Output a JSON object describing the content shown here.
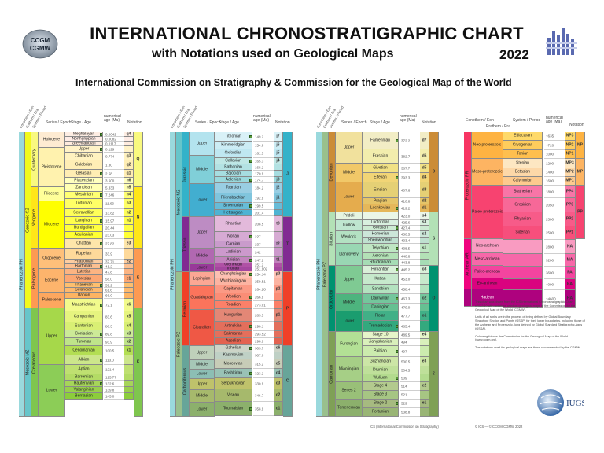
{
  "header": {
    "title": "INTERNATIONAL CHRONOSTRATIGRAPHIC CHART",
    "subtitle": "with Notations used on Geological Maps",
    "year": "2022",
    "organizations": "International Commission on Stratigraphy & Commission for the Geological Map of the World"
  },
  "logos": {
    "left": "ICS CGMW logo",
    "left_text_top": "CCGM",
    "left_text_bottom": "CGMW",
    "right": "ICS logo",
    "bottom": "IUGS logo",
    "bottom_text": "IUGS"
  },
  "column_headers": {
    "eonothem": "Eonothem / Eon",
    "erathem": "Erathem / Era",
    "system": "System / Period",
    "series": "Series / Epoch",
    "stage": "Stage / Age",
    "numerical": "numerical age (Ma)",
    "notation": "Notation"
  },
  "panel1": {
    "eon": "Phanerozoic  PH",
    "eras": [
      {
        "label": "Cenozoic  CZ"
      },
      {
        "label": "Mesozoic  MZ"
      }
    ],
    "systems": [
      {
        "label": "Quaternary"
      },
      {
        "label": "Neogene"
      },
      {
        "label": "Paleogene"
      },
      {
        "label": "Cretaceous"
      }
    ],
    "series": [
      {
        "label": "Holocene"
      },
      {
        "label": "Pleistocene"
      },
      {
        "label": "Pliocene"
      },
      {
        "label": "Miocene"
      },
      {
        "label": "Oligocene"
      },
      {
        "label": "Eocene"
      },
      {
        "label": "Paleocene"
      },
      {
        "label": "Upper"
      },
      {
        "label": "Lower"
      }
    ],
    "stages": [
      {
        "label": "Meghalayan",
        "age": "0.0042",
        "note": "q4"
      },
      {
        "label": "Northgrippian",
        "age": "0.0082",
        "note": ""
      },
      {
        "label": "Greenlandian",
        "age": "0.0117",
        "note": ""
      },
      {
        "label": "Upper",
        "age": "0.129",
        "note": ""
      },
      {
        "label": "Chibanian",
        "age": "0.774",
        "note": "q3"
      },
      {
        "label": "Calabrian",
        "age": "1.80",
        "note": "q2"
      },
      {
        "label": "Gelasian",
        "age": "2.58",
        "note": "q1"
      },
      {
        "label": "Piacenzian",
        "age": "3.600",
        "note": "n6"
      },
      {
        "label": "Zanclean",
        "age": "5.333",
        "note": "n5"
      },
      {
        "label": "Messinian",
        "age": "7.246",
        "note": "n4"
      },
      {
        "label": "Tortonian",
        "age": "11.63",
        "note": "n3"
      },
      {
        "label": "Serravallian",
        "age": "13.82",
        "note": "n2"
      },
      {
        "label": "Langhian",
        "age": "15.97",
        "note": "n1"
      },
      {
        "label": "Burdigalian",
        "age": "20.44",
        "note": ""
      },
      {
        "label": "Aquitanian",
        "age": "23.03",
        "note": ""
      },
      {
        "label": "Chattian",
        "age": "27.82",
        "note": "e3"
      },
      {
        "label": "Rupelian",
        "age": "33.9",
        "note": ""
      },
      {
        "label": "Priabonian",
        "age": "37.71",
        "note": "e2"
      },
      {
        "label": "Bartonian",
        "age": "41.2",
        "note": ""
      },
      {
        "label": "Lutetian",
        "age": "47.8",
        "note": ""
      },
      {
        "label": "Ypresian",
        "age": "56.0",
        "note": "e1"
      },
      {
        "label": "Thanetian",
        "age": "59.2",
        "note": ""
      },
      {
        "label": "Selandian",
        "age": "61.6",
        "note": ""
      },
      {
        "label": "Danian",
        "age": "66.0",
        "note": ""
      },
      {
        "label": "Maastrichtian",
        "age": "72.1",
        "note": "k6"
      },
      {
        "label": "Campanian",
        "age": "83.6",
        "note": "k5"
      },
      {
        "label": "Santonian",
        "age": "86.3",
        "note": "k4"
      },
      {
        "label": "Coniacian",
        "age": "89.8",
        "note": "k3"
      },
      {
        "label": "Turonian",
        "age": "93.9",
        "note": "k2"
      },
      {
        "label": "Cenomanian",
        "age": "100.5",
        "note": "k1"
      },
      {
        "label": "Albian",
        "age": "113.0",
        "note": ""
      },
      {
        "label": "Aptian",
        "age": "121.4",
        "note": ""
      },
      {
        "label": "Barremian",
        "age": "125.77",
        "note": ""
      },
      {
        "label": "Hauterivian",
        "age": "132.6",
        "note": ""
      },
      {
        "label": "Valanginian",
        "age": "139.8",
        "note": ""
      },
      {
        "label": "Berriasian",
        "age": "145.0",
        "note": ""
      }
    ],
    "notations": [
      "Q",
      "N",
      "E",
      "K"
    ]
  },
  "panel2": {
    "eon": "Phanerozoic  PH",
    "eras": [
      {
        "label": "Mesozoic  MZ"
      },
      {
        "label": "Paleozoic  PZ"
      }
    ],
    "systems": [
      {
        "label": "Jurassic"
      },
      {
        "label": "Triassic"
      },
      {
        "label": "Permian"
      },
      {
        "label": "Carboniferous"
      }
    ],
    "series": [
      {
        "label": "Upper"
      },
      {
        "label": "Middle"
      },
      {
        "label": "Lower"
      },
      {
        "label": "Upper"
      },
      {
        "label": "Middle"
      },
      {
        "label": "Lower"
      },
      {
        "label": "Lopingian"
      },
      {
        "label": "Guadalupian"
      },
      {
        "label": "Cisuralian"
      },
      {
        "label": "Upper"
      },
      {
        "label": "Middle"
      },
      {
        "label": "Lower"
      },
      {
        "label": "Upper"
      },
      {
        "label": "Middle"
      },
      {
        "label": "Lower"
      }
    ],
    "stages": [
      {
        "label": "Tithonian",
        "age": "149.2",
        "note": "j7"
      },
      {
        "label": "Kimmeridgian",
        "age": "154.8",
        "note": "j6"
      },
      {
        "label": "Oxfordian",
        "age": "161.5",
        "note": "j5"
      },
      {
        "label": "Callovian",
        "age": "165.3",
        "note": "j4"
      },
      {
        "label": "Bathonian",
        "age": "168.2",
        "note": ""
      },
      {
        "label": "Bajocian",
        "age": "170.9",
        "note": ""
      },
      {
        "label": "Aalenian",
        "age": "174.7",
        "note": "j3"
      },
      {
        "label": "Toarcian",
        "age": "184.2",
        "note": "j2"
      },
      {
        "label": "Pliensbachian",
        "age": "192.9",
        "note": "j1"
      },
      {
        "label": "Sinemurian",
        "age": "199.5",
        "note": ""
      },
      {
        "label": "Hettangian",
        "age": "201.4",
        "note": ""
      },
      {
        "label": "Rhaetian",
        "age": "208.5",
        "note": "t3"
      },
      {
        "label": "Norian",
        "age": "227",
        "note": ""
      },
      {
        "label": "Carnian",
        "age": "237",
        "note": "t2"
      },
      {
        "label": "Ladinian",
        "age": "242",
        "note": ""
      },
      {
        "label": "Anisian",
        "age": "247.2",
        "note": "t1"
      },
      {
        "label": "Olenekian",
        "age": "251.2",
        "note": ""
      },
      {
        "label": "Induan",
        "age": "251.902",
        "note": ""
      },
      {
        "label": "Changhsingian",
        "age": "254.14",
        "note": "p3"
      },
      {
        "label": "Wuchiapingian",
        "age": "259.51",
        "note": ""
      },
      {
        "label": "Capitanian",
        "age": "264.28",
        "note": "p2"
      },
      {
        "label": "Wordian",
        "age": "266.9",
        "note": ""
      },
      {
        "label": "Roadian",
        "age": "273.01",
        "note": ""
      },
      {
        "label": "Kungurian",
        "age": "283.5",
        "note": "p1"
      },
      {
        "label": "Artinskian",
        "age": "290.1",
        "note": ""
      },
      {
        "label": "Sakmarian",
        "age": "293.52",
        "note": ""
      },
      {
        "label": "Asselian",
        "age": "298.9",
        "note": ""
      },
      {
        "label": "Gzhelian",
        "age": "303.7",
        "note": "c6"
      },
      {
        "label": "Kasimovian",
        "age": "307.0",
        "note": ""
      },
      {
        "label": "Moscovian",
        "age": "315.2",
        "note": "c5"
      },
      {
        "label": "Bashkirian",
        "age": "323.2",
        "note": "c4"
      },
      {
        "label": "Serpukhovian",
        "age": "330.9",
        "note": "c3"
      },
      {
        "label": "Visean",
        "age": "346.7",
        "note": "c2"
      },
      {
        "label": "Tournaisian",
        "age": "358.9",
        "note": "c1"
      }
    ],
    "notations": [
      "J",
      "T",
      "P",
      "C"
    ]
  },
  "panel3": {
    "eon": "Phanerozoic  PH",
    "era": "Paleozoic  PZ",
    "systems": [
      {
        "label": "Devonian"
      },
      {
        "label": "Silurian"
      },
      {
        "label": "Ordovician"
      },
      {
        "label": "Cambrian"
      }
    ],
    "series": [
      {
        "label": "Upper"
      },
      {
        "label": "Middle"
      },
      {
        "label": "Lower"
      },
      {
        "label": "Pridoli"
      },
      {
        "label": "Ludlow"
      },
      {
        "label": "Wenlock"
      },
      {
        "label": "Llandovery"
      },
      {
        "label": "Upper"
      },
      {
        "label": "Middle"
      },
      {
        "label": "Lower"
      },
      {
        "label": "Furongian"
      },
      {
        "label": "Miaolingian"
      },
      {
        "label": "Series 2"
      },
      {
        "label": "Terreneuvian"
      }
    ],
    "stages": [
      {
        "label": "Famennian",
        "age": "372.2",
        "note": "d7"
      },
      {
        "label": "Frasnian",
        "age": "382.7",
        "note": "d6"
      },
      {
        "label": "Givetian",
        "age": "387.7",
        "note": "d5"
      },
      {
        "label": "Eifelian",
        "age": "393.3",
        "note": "d4"
      },
      {
        "label": "Emsian",
        "age": "407.6",
        "note": "d3"
      },
      {
        "label": "Pragian",
        "age": "410.8",
        "note": "d2"
      },
      {
        "label": "Lochkovian",
        "age": "419.2",
        "note": "d1"
      },
      {
        "label": "",
        "age": "423.0",
        "note": "s4"
      },
      {
        "label": "Ludfordian",
        "age": "425.6",
        "note": "s3"
      },
      {
        "label": "Gorstian",
        "age": "427.4",
        "note": ""
      },
      {
        "label": "Homerian",
        "age": "430.5",
        "note": "s2"
      },
      {
        "label": "Sheinwoodian",
        "age": "433.4",
        "note": ""
      },
      {
        "label": "Telychian",
        "age": "438.5",
        "note": "s1"
      },
      {
        "label": "Aeronian",
        "age": "440.8",
        "note": ""
      },
      {
        "label": "Rhuddanian",
        "age": "443.8",
        "note": ""
      },
      {
        "label": "Hirnantian",
        "age": "445.2",
        "note": "o3"
      },
      {
        "label": "Katian",
        "age": "453.0",
        "note": ""
      },
      {
        "label": "Sandbian",
        "age": "458.4",
        "note": ""
      },
      {
        "label": "Darriwilian",
        "age": "467.3",
        "note": "o2"
      },
      {
        "label": "Dapingian",
        "age": "470.0",
        "note": ""
      },
      {
        "label": "Floian",
        "age": "477.7",
        "note": "o1"
      },
      {
        "label": "Tremadocian",
        "age": "485.4",
        "note": ""
      },
      {
        "label": "Stage 10",
        "age": "489.5",
        "note": "e4"
      },
      {
        "label": "Jiangshanian",
        "age": "494",
        "note": ""
      },
      {
        "label": "Paibian",
        "age": "497",
        "note": ""
      },
      {
        "label": "Guzhangian",
        "age": "500.5",
        "note": "e3"
      },
      {
        "label": "Drumian",
        "age": "504.5",
        "note": ""
      },
      {
        "label": "Wuliuan",
        "age": "509",
        "note": ""
      },
      {
        "label": "Stage 4",
        "age": "514",
        "note": "e2"
      },
      {
        "label": "Stage 3",
        "age": "521",
        "note": ""
      },
      {
        "label": "Stage 2",
        "age": "529",
        "note": "e1"
      },
      {
        "label": "Fortunian",
        "age": "538.8",
        "note": ""
      }
    ],
    "notations": [
      "D",
      "S",
      "O",
      "Є"
    ]
  },
  "panel4": {
    "col_headers": {
      "eonothem": "Eonothem / Eon",
      "erathem": "Erathem / Era",
      "system": "System / Period",
      "age": "numerical age (Ma)",
      "notation": "Notation"
    },
    "eons": [
      {
        "label": "Proterozoic  PR"
      },
      {
        "label": "Archean  AR"
      },
      {
        "label": "Hadean"
      }
    ],
    "eras": [
      {
        "label": "Neo-proterozoic"
      },
      {
        "label": "Meso-proterozoic"
      },
      {
        "label": "Paleo-proterozoic"
      },
      {
        "label": "Neo-archean"
      },
      {
        "label": "Meso-archean"
      },
      {
        "label": "Paleo-archean"
      },
      {
        "label": "Eo-archean"
      }
    ],
    "periods": [
      {
        "label": "Ediacaran",
        "age": "~635",
        "note": "NP3"
      },
      {
        "label": "Cryogenian",
        "age": "~720",
        "note": "NP2"
      },
      {
        "label": "Tonian",
        "age": "1000",
        "note": "NP1"
      },
      {
        "label": "Stenian",
        "age": "1200",
        "note": "MP3"
      },
      {
        "label": "Ectasian",
        "age": "1400",
        "note": "MP2"
      },
      {
        "label": "Calymmian",
        "age": "1600",
        "note": "MP1"
      },
      {
        "label": "Statherian",
        "age": "1800",
        "note": "PP4"
      },
      {
        "label": "Orosirian",
        "age": "2050",
        "note": "PP3"
      },
      {
        "label": "Rhyacian",
        "age": "2300",
        "note": "PP2"
      },
      {
        "label": "Siderian",
        "age": "2500",
        "note": "PP1"
      },
      {
        "label": "",
        "age": "2800",
        "note": "NA"
      },
      {
        "label": "",
        "age": "3200",
        "note": "MA"
      },
      {
        "label": "",
        "age": "3600",
        "note": "PA"
      },
      {
        "label": "",
        "age": "4000",
        "note": "EA"
      },
      {
        "label": "",
        "age": "~4600",
        "note": "HA"
      }
    ],
    "notations": [
      "NP",
      "MP",
      "PP"
    ]
  },
  "notes": {
    "p1": "This chart was drawn from the ICS International Chronostratigraphic Chart v2022/10 with notations used on geological maps of the Commission for the Geological Map of the World (CGMW).",
    "p2": "Units of all ranks are in the process of being defined by Global Boundary Stratotype Section and Points (GSSP) for their lower boundaries, including those of the Archean and Proterozoic, long defined by Global Standard Stratigraphic Ages (GSSA).",
    "p3": "Colouring follows the Commission for the Geological Map of the World (www.ccgm.org).",
    "p4": "The notations used for geological maps are those recommended by the CGMW."
  },
  "credits": {
    "panel3": "ICS (International Commission on Stratigraphy)",
    "panel4": "© ICS — © CCGM-CGMW 2022"
  }
}
